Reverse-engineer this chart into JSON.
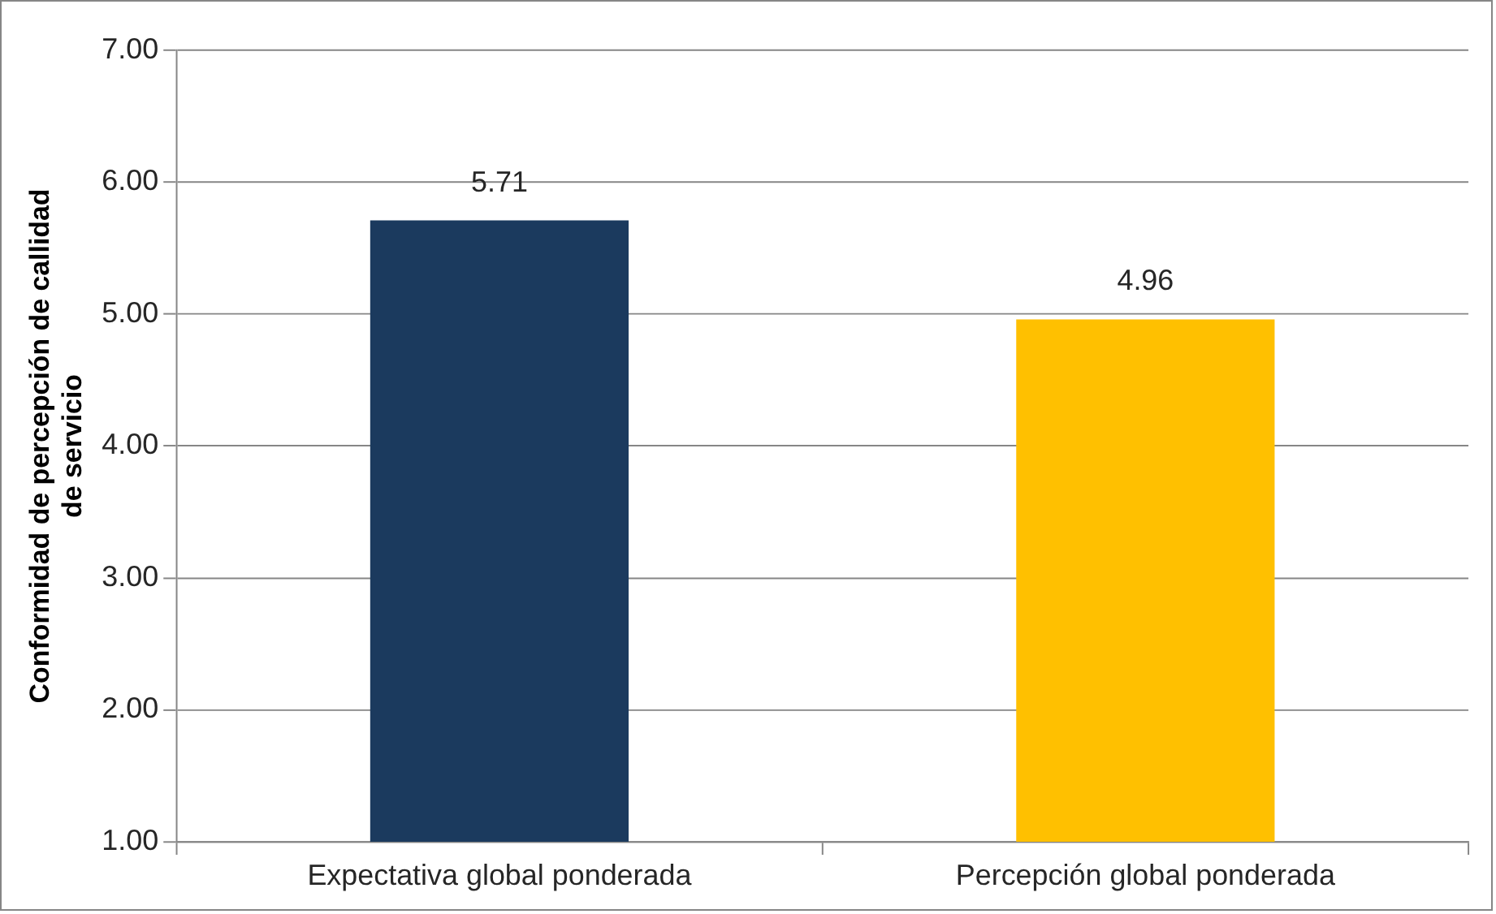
{
  "chart_data": {
    "type": "bar",
    "ylabel": "Conformidad de percepción de callidad\nde servicio",
    "categories": [
      "Expectativa global ponderada",
      "Percepción global ponderada"
    ],
    "values": [
      5.71,
      4.96
    ],
    "colors": [
      "#1b3a5e",
      "#ffc000"
    ],
    "ylim": [
      1,
      7
    ],
    "yticks": [
      {
        "value": 1,
        "label": "1.00"
      },
      {
        "value": 2,
        "label": "2.00"
      },
      {
        "value": 3,
        "label": "3.00"
      },
      {
        "value": 4,
        "label": "4.00"
      },
      {
        "value": 5,
        "label": "5.00"
      },
      {
        "value": 6,
        "label": "6.00"
      },
      {
        "value": 7,
        "label": "7.00"
      }
    ],
    "grid": "y",
    "data_labels": true,
    "legend": false
  }
}
